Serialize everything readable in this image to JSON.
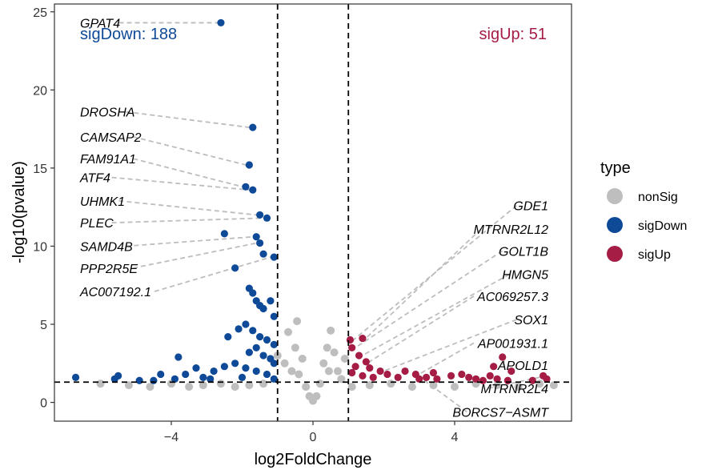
{
  "chart_data": {
    "type": "scatter",
    "title": "",
    "xlabel": "log2FoldChange",
    "ylabel": "-log10(pvalue)",
    "xlim": [
      -7.3,
      7.3
    ],
    "ylim": [
      -1.2,
      25.5
    ],
    "xticks": [
      -4,
      0,
      4
    ],
    "xtick_labels": [
      "−4",
      "0",
      "4"
    ],
    "yticks": [
      0,
      5,
      10,
      15,
      20,
      25
    ],
    "ytick_labels": [
      "0",
      "5",
      "10",
      "15",
      "20",
      "25"
    ],
    "grid": false,
    "thresholds": {
      "vertical": [
        -1,
        1
      ],
      "horizontal": [
        1.3
      ]
    },
    "colors": {
      "nonSig": "#bebebe",
      "sigDown": "#0e4a97",
      "sigUp": "#a51c44"
    },
    "legend": {
      "title": "type",
      "position": "right",
      "items": [
        {
          "label": "nonSig",
          "color": "#bebebe"
        },
        {
          "label": "sigDown",
          "color": "#0e4a97"
        },
        {
          "label": "sigUp",
          "color": "#a51c44"
        }
      ]
    },
    "counts": [
      {
        "text": "sigDown: 188",
        "color": "#0e4a97",
        "corner": "top-left"
      },
      {
        "text": "sigUp: 51",
        "color": "#a51c44",
        "corner": "top-right"
      }
    ],
    "series": [
      {
        "name": "nonSig",
        "points": [
          [
            -6.0,
            1.2
          ],
          [
            -5.2,
            1.1
          ],
          [
            -4.6,
            1.0
          ],
          [
            -4.0,
            1.2
          ],
          [
            -3.5,
            1.0
          ],
          [
            -3.1,
            1.1
          ],
          [
            -2.6,
            1.2
          ],
          [
            -2.2,
            1.0
          ],
          [
            -1.8,
            1.1
          ],
          [
            -1.4,
            1.2
          ],
          [
            -1.0,
            3.0
          ],
          [
            -0.8,
            2.5
          ],
          [
            -0.7,
            4.5
          ],
          [
            -0.6,
            2.0
          ],
          [
            -0.5,
            3.5
          ],
          [
            -0.45,
            5.2
          ],
          [
            -0.4,
            1.8
          ],
          [
            -0.3,
            2.8
          ],
          [
            -0.2,
            1.0
          ],
          [
            -0.1,
            0.4
          ],
          [
            0.0,
            0.1
          ],
          [
            0.1,
            0.4
          ],
          [
            0.2,
            1.2
          ],
          [
            0.3,
            2.5
          ],
          [
            0.4,
            3.5
          ],
          [
            0.5,
            4.6
          ],
          [
            0.45,
            2.0
          ],
          [
            0.6,
            3.2
          ],
          [
            0.7,
            2.0
          ],
          [
            0.8,
            1.5
          ],
          [
            0.9,
            2.8
          ],
          [
            1.1,
            1.0
          ],
          [
            1.6,
            1.1
          ],
          [
            2.2,
            1.2
          ],
          [
            2.8,
            1.0
          ],
          [
            3.4,
            1.1
          ],
          [
            4.0,
            1.0
          ],
          [
            4.6,
            1.2
          ],
          [
            5.2,
            1.1
          ],
          [
            5.8,
            1.0
          ],
          [
            6.4,
            1.2
          ],
          [
            6.8,
            1.1
          ]
        ]
      },
      {
        "name": "sigDown",
        "points": [
          [
            -2.6,
            24.3
          ],
          [
            -1.7,
            17.6
          ],
          [
            -1.8,
            15.2
          ],
          [
            -1.9,
            13.8
          ],
          [
            -1.7,
            13.6
          ],
          [
            -1.5,
            12.0
          ],
          [
            -1.3,
            11.8
          ],
          [
            -1.6,
            10.6
          ],
          [
            -2.5,
            10.8
          ],
          [
            -1.5,
            10.2
          ],
          [
            -1.1,
            9.3
          ],
          [
            -1.4,
            9.5
          ],
          [
            -2.2,
            8.6
          ],
          [
            -1.8,
            7.3
          ],
          [
            -1.7,
            7.0
          ],
          [
            -1.6,
            6.5
          ],
          [
            -1.5,
            6.2
          ],
          [
            -1.4,
            6.0
          ],
          [
            -1.2,
            6.5
          ],
          [
            -1.1,
            5.5
          ],
          [
            -2.1,
            4.7
          ],
          [
            -2.4,
            4.2
          ],
          [
            -1.9,
            5.0
          ],
          [
            -1.7,
            4.6
          ],
          [
            -1.5,
            4.2
          ],
          [
            -1.3,
            4.0
          ],
          [
            -1.1,
            3.7
          ],
          [
            -1.6,
            3.5
          ],
          [
            -1.8,
            3.2
          ],
          [
            -1.4,
            3.0
          ],
          [
            -1.2,
            2.8
          ],
          [
            -1.1,
            2.5
          ],
          [
            -3.8,
            2.9
          ],
          [
            -3.3,
            2.2
          ],
          [
            -2.8,
            2.0
          ],
          [
            -2.5,
            2.3
          ],
          [
            -2.2,
            2.5
          ],
          [
            -3.6,
            1.8
          ],
          [
            -3.1,
            1.6
          ],
          [
            -4.3,
            1.8
          ],
          [
            -4.5,
            1.4
          ],
          [
            -4.9,
            1.4
          ],
          [
            -5.5,
            1.7
          ],
          [
            -5.6,
            1.5
          ],
          [
            -6.7,
            1.6
          ],
          [
            -3.9,
            1.5
          ],
          [
            -2.9,
            1.5
          ],
          [
            -2.0,
            1.6
          ],
          [
            -1.9,
            2.2
          ],
          [
            -1.6,
            2.0
          ],
          [
            -1.3,
            1.8
          ],
          [
            -1.1,
            1.5
          ]
        ]
      },
      {
        "name": "sigUp",
        "points": [
          [
            1.05,
            4.0
          ],
          [
            1.4,
            4.1
          ],
          [
            1.1,
            3.5
          ],
          [
            1.3,
            3.0
          ],
          [
            1.5,
            2.6
          ],
          [
            1.2,
            2.3
          ],
          [
            1.6,
            2.2
          ],
          [
            1.9,
            2.0
          ],
          [
            2.1,
            1.8
          ],
          [
            1.7,
            1.6
          ],
          [
            2.4,
            1.6
          ],
          [
            1.4,
            1.7
          ],
          [
            1.1,
            1.9
          ],
          [
            2.9,
            1.8
          ],
          [
            3.2,
            1.6
          ],
          [
            3.5,
            1.5
          ],
          [
            3.0,
            1.5
          ],
          [
            3.9,
            1.7
          ],
          [
            4.2,
            1.8
          ],
          [
            4.4,
            1.6
          ],
          [
            4.6,
            1.5
          ],
          [
            4.8,
            1.4
          ],
          [
            5.0,
            1.7
          ],
          [
            5.1,
            2.3
          ],
          [
            5.2,
            1.5
          ],
          [
            5.35,
            2.9
          ],
          [
            5.5,
            1.4
          ],
          [
            5.6,
            2.0
          ],
          [
            6.2,
            1.4
          ],
          [
            6.5,
            1.7
          ],
          [
            6.6,
            1.5
          ],
          [
            3.4,
            1.9
          ],
          [
            2.6,
            2.0
          ]
        ]
      }
    ],
    "annotations": [
      {
        "text": "GPAT4",
        "side": "left",
        "x": -2.6,
        "y": 24.3,
        "label_y": 24.3
      },
      {
        "text": "DROSHA",
        "side": "left",
        "x": -1.7,
        "y": 17.6,
        "label_y": 18.6
      },
      {
        "text": "CAMSAP2",
        "side": "left",
        "x": -1.8,
        "y": 15.2,
        "label_y": 17.0
      },
      {
        "text": "FAM91A1",
        "side": "left",
        "x": -1.9,
        "y": 13.8,
        "label_y": 15.6
      },
      {
        "text": "ATF4",
        "side": "left",
        "x": -1.7,
        "y": 13.6,
        "label_y": 14.4
      },
      {
        "text": "UHMK1",
        "side": "left",
        "x": -1.5,
        "y": 12.0,
        "label_y": 12.9
      },
      {
        "text": "PLEC",
        "side": "left",
        "x": -1.3,
        "y": 11.8,
        "label_y": 11.5
      },
      {
        "text": "SAMD4B",
        "side": "left",
        "x": -1.6,
        "y": 10.6,
        "label_y": 10.0
      },
      {
        "text": "PPP2R5E",
        "side": "left",
        "x": -1.5,
        "y": 10.2,
        "label_y": 8.6
      },
      {
        "text": "AC007192.1",
        "side": "left",
        "x": -1.1,
        "y": 9.3,
        "label_y": 7.1
      },
      {
        "text": "GDE1",
        "side": "right",
        "x": 1.05,
        "y": 4.0,
        "label_y": 12.6
      },
      {
        "text": "MTRNR2L12",
        "side": "right",
        "x": 1.4,
        "y": 4.1,
        "label_y": 11.1
      },
      {
        "text": "GOLT1B",
        "side": "right",
        "x": 1.1,
        "y": 3.5,
        "label_y": 9.7
      },
      {
        "text": "HMGN5",
        "side": "right",
        "x": 1.3,
        "y": 3.0,
        "label_y": 8.2
      },
      {
        "text": "AC069257.3",
        "side": "right",
        "x": 1.5,
        "y": 2.6,
        "label_y": 6.8
      },
      {
        "text": "SOX1",
        "side": "right",
        "x": 1.9,
        "y": 2.0,
        "label_y": 5.3
      },
      {
        "text": "AP001931.1",
        "side": "right",
        "x": 2.9,
        "y": 1.8,
        "label_y": 3.8
      },
      {
        "text": "APOLD1",
        "side": "right",
        "x": 5.35,
        "y": 2.9,
        "label_y": 2.4
      },
      {
        "text": "MTRNR2L4",
        "side": "right",
        "x": 6.5,
        "y": 1.7,
        "label_y": 0.9
      },
      {
        "text": "BORCS7−ASMT",
        "side": "right",
        "x": 3.0,
        "y": 1.5,
        "label_y": -0.6
      }
    ]
  }
}
